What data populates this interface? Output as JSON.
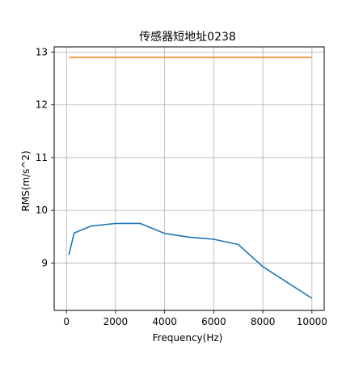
{
  "chart_data": {
    "type": "line",
    "title": "传感器短地址0238",
    "xlabel": "Frequency(Hz)",
    "ylabel": "RMS(m/s^2)",
    "xlim": [
      -500,
      10500
    ],
    "ylim": [
      8.1,
      13.1
    ],
    "xticks": [
      0,
      2000,
      4000,
      6000,
      8000,
      10000
    ],
    "yticks": [
      9,
      10,
      11,
      12,
      13
    ],
    "grid": true,
    "series": [
      {
        "color": "#1f77b4",
        "x": [
          100,
          315,
          1000,
          2000,
          3000,
          4000,
          5000,
          6000,
          7000,
          8000,
          10000
        ],
        "y": [
          9.15,
          9.57,
          9.7,
          9.75,
          9.75,
          9.56,
          9.49,
          9.45,
          9.35,
          8.93,
          8.33
        ]
      },
      {
        "color": "#ff7f0e",
        "x": [
          100,
          10000
        ],
        "y": [
          12.9,
          12.9
        ]
      }
    ]
  }
}
